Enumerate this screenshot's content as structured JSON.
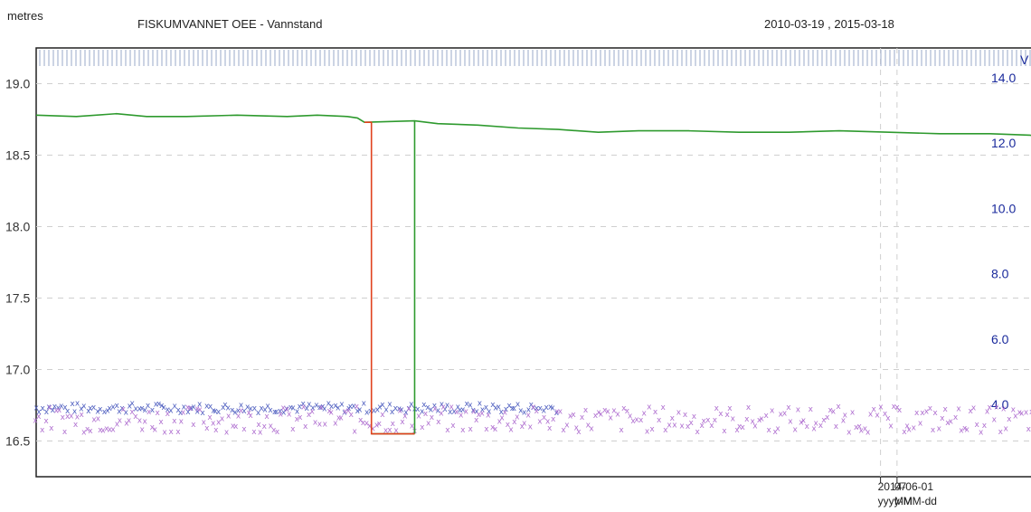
{
  "header": {
    "left_unit": "metres",
    "station_title": "FISKUMVANNET OEE - Vannstand",
    "date_range": "2010-03-19 , 2015-03-18"
  },
  "chart_data": {
    "type": "line",
    "title": "FISKUMVANNET OEE - Vannstand",
    "ylabel": "metres",
    "xlabel": "",
    "x_domain": [
      "2010-03-19",
      "2015-03-18"
    ],
    "ylim": [
      16.25,
      19.25
    ],
    "y_ticks": [
      "16.5",
      "17.0",
      "17.5",
      "18.0",
      "18.5",
      "19.0"
    ],
    "y2_label": "V",
    "y2lim": [
      2.25,
      14.5
    ],
    "y2_ticks": [
      "4.0",
      "6.0",
      "8.0",
      "10.0",
      "12.0",
      "14.0"
    ],
    "x_ticks": [
      {
        "date": "2014-06-01",
        "label": "2014-06-01",
        "sublabel": "yyyy-MM-dd"
      },
      {
        "date": "2014-07-01",
        "label": "07",
        "sublabel": "MM"
      }
    ],
    "grid": true,
    "colors": {
      "level_series": "#2e9a2e",
      "gap_series": "#e0421e",
      "scatter_blue": "#5060c0",
      "scatter_purple": "#b070d0",
      "secondary_axis": "#1a2a9c"
    },
    "series": [
      {
        "key": "level",
        "axis": "left",
        "style": "line",
        "points": [
          [
            0.0,
            18.78
          ],
          [
            0.04,
            18.77
          ],
          [
            0.08,
            18.79
          ],
          [
            0.11,
            18.77
          ],
          [
            0.15,
            18.77
          ],
          [
            0.2,
            18.78
          ],
          [
            0.25,
            18.77
          ],
          [
            0.28,
            18.78
          ],
          [
            0.31,
            18.77
          ],
          [
            0.32,
            18.76
          ],
          [
            0.327,
            18.73
          ],
          [
            0.377,
            18.74
          ],
          [
            0.4,
            18.72
          ],
          [
            0.44,
            18.71
          ],
          [
            0.48,
            18.69
          ],
          [
            0.52,
            18.68
          ],
          [
            0.56,
            18.66
          ],
          [
            0.6,
            18.67
          ],
          [
            0.65,
            18.67
          ],
          [
            0.7,
            18.66
          ],
          [
            0.75,
            18.66
          ],
          [
            0.8,
            18.67
          ],
          [
            0.85,
            18.66
          ],
          [
            0.9,
            18.65
          ],
          [
            0.95,
            18.65
          ],
          [
            0.99,
            18.64
          ],
          [
            1.0,
            18.62
          ]
        ],
        "step_segments": [
          [
            [
              0.334,
              16.55
            ],
            [
              0.377,
              16.55
            ]
          ],
          [
            [
              0.377,
              16.55
            ],
            [
              0.377,
              18.74
            ]
          ]
        ]
      },
      {
        "key": "gap",
        "axis": "left",
        "style": "line",
        "points": [
          [
            0.327,
            18.73
          ],
          [
            0.334,
            18.73
          ],
          [
            0.334,
            16.55
          ],
          [
            0.377,
            16.55
          ]
        ]
      },
      {
        "key": "blue_markers",
        "axis": "right",
        "style": "scatter",
        "x_range": [
          0.0,
          0.52
        ],
        "y_band": [
          3.75,
          4.05
        ]
      },
      {
        "key": "purple_markers",
        "axis": "right",
        "style": "scatter",
        "x_range": [
          0.0,
          1.0
        ],
        "y_band": [
          3.15,
          3.95
        ]
      }
    ]
  }
}
